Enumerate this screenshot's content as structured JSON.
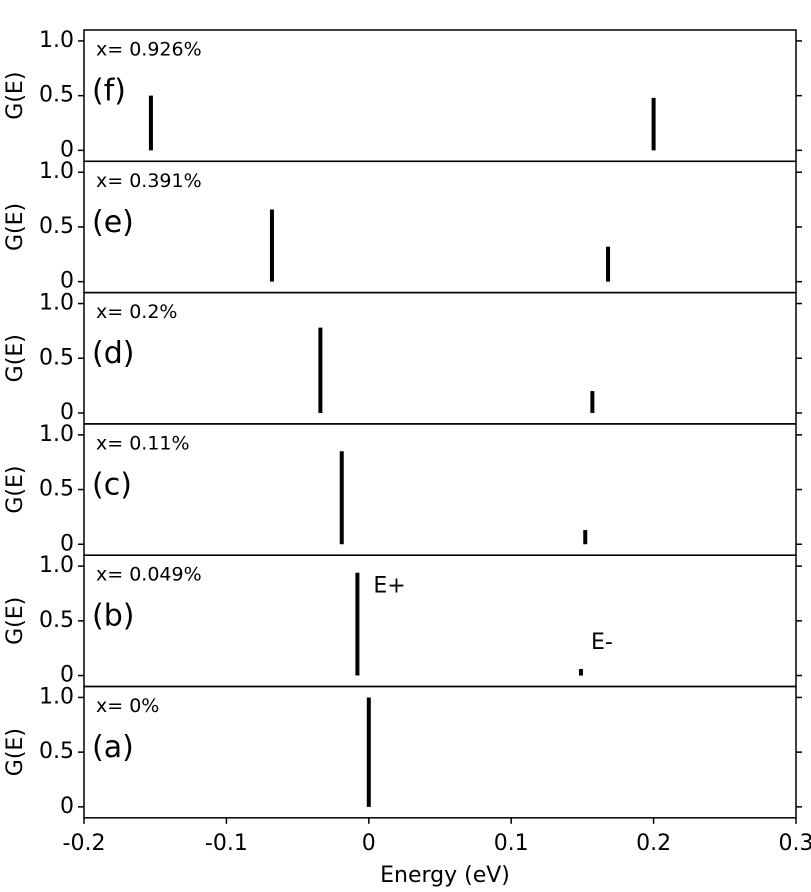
{
  "chart_data": [
    {
      "type": "stem",
      "label": "(f)",
      "note": "x= 0.926%",
      "ylabel": "G(E)",
      "color": "#000000",
      "x": [
        -0.153,
        0.2
      ],
      "values": [
        0.5,
        0.48
      ],
      "xlim": [
        -0.2,
        0.3
      ],
      "ylim": [
        -0.1,
        1.1
      ],
      "yticks": [
        0,
        0.5,
        {
          "value": 1,
          "label": "1.0"
        }
      ]
    },
    {
      "type": "stem",
      "label": "(e)",
      "note": "x= 0.391%",
      "ylabel": "G(E)",
      "color": "#000000",
      "x": [
        -0.068,
        0.168
      ],
      "values": [
        0.66,
        0.32
      ],
      "xlim": [
        -0.2,
        0.3
      ],
      "ylim": [
        -0.1,
        1.1
      ],
      "yticks": [
        0,
        0.5,
        {
          "value": 1,
          "label": "1.0"
        }
      ]
    },
    {
      "type": "stem",
      "label": "(d)",
      "note": "x= 0.2%",
      "ylabel": "G(E)",
      "color": "#000000",
      "x": [
        -0.034,
        0.157
      ],
      "values": [
        0.78,
        0.2
      ],
      "xlim": [
        -0.2,
        0.3
      ],
      "ylim": [
        -0.1,
        1.1
      ],
      "yticks": [
        0,
        0.5,
        {
          "value": 1,
          "label": "1.0"
        }
      ]
    },
    {
      "type": "stem",
      "label": "(c)",
      "note": "x= 0.11%",
      "ylabel": "G(E)",
      "color": "#000000",
      "x": [
        -0.019,
        0.152
      ],
      "values": [
        0.85,
        0.13
      ],
      "xlim": [
        -0.2,
        0.3
      ],
      "ylim": [
        -0.1,
        1.1
      ],
      "yticks": [
        0,
        0.5,
        {
          "value": 1,
          "label": "1.0"
        }
      ]
    },
    {
      "type": "stem",
      "label": "(b)",
      "note": "x= 0.049%",
      "ylabel": "G(E)",
      "color": "#000000",
      "x": [
        -0.008,
        0.149
      ],
      "values": [
        0.94,
        0.06
      ],
      "annotations": [
        "E+",
        "E-"
      ],
      "xlim": [
        -0.2,
        0.3
      ],
      "ylim": [
        -0.1,
        1.1
      ],
      "yticks": [
        0,
        0.5,
        {
          "value": 1,
          "label": "1.0"
        }
      ]
    },
    {
      "type": "stem",
      "label": "(a)",
      "note": "x= 0%",
      "ylabel": "G(E)",
      "color": "#000000",
      "x": [
        0
      ],
      "values": [
        1.0
      ],
      "xlabel": "Energy (eV)",
      "xlim": [
        -0.2,
        0.3
      ],
      "xticks": [
        -0.2,
        -0.1,
        0,
        0.1,
        0.2,
        0.3
      ],
      "ylim": [
        -0.1,
        1.1
      ],
      "yticks": [
        0,
        0.5,
        {
          "value": 1,
          "label": "1.0"
        }
      ]
    }
  ]
}
